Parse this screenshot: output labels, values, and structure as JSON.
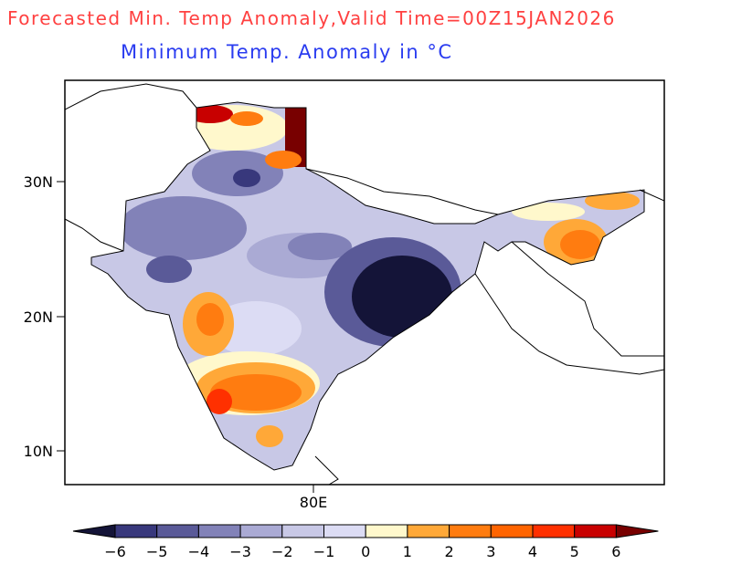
{
  "header": {
    "title": "Forecasted Min. Temp Anomaly,Valid Time=00Z15JAN2026",
    "subtitle": "Minimum Temp. Anomaly in °C"
  },
  "axes": {
    "y_ticks": [
      "30N",
      "20N",
      "10N"
    ],
    "x_ticks": [
      "80E"
    ]
  },
  "legend": {
    "labels": [
      "−6",
      "−5",
      "−4",
      "−3",
      "−2",
      "−1",
      "0",
      "1",
      "2",
      "3",
      "4",
      "5",
      "6"
    ],
    "colors": [
      "#141438",
      "#38387c",
      "#5a5a98",
      "#8282b8",
      "#aaaad4",
      "#c8c8e6",
      "#dcdcf4",
      "#fff8cc",
      "#ffa838",
      "#ff7c10",
      "#ff6400",
      "#ff3000",
      "#c80000",
      "#780000"
    ]
  }
}
